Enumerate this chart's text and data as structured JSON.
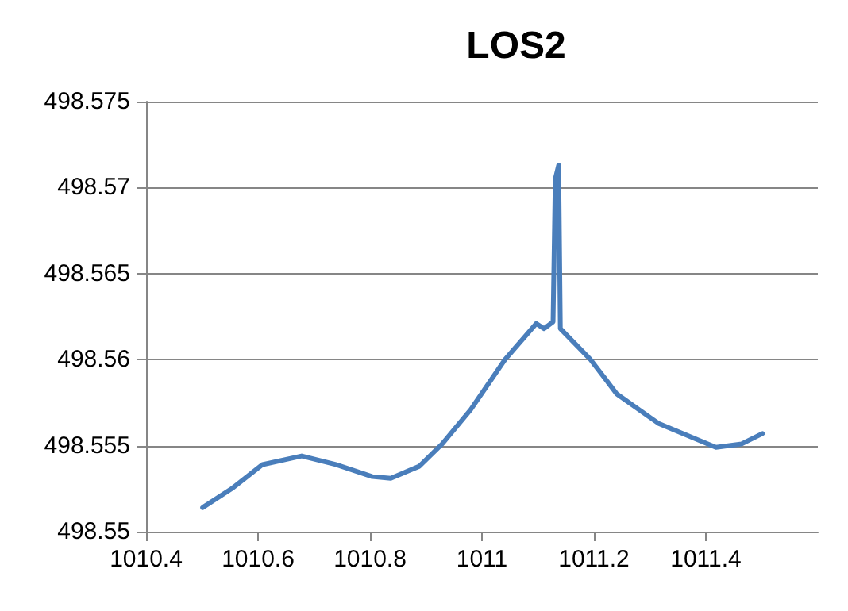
{
  "chart_data": {
    "type": "line",
    "title": "LOS2",
    "x": [
      1010.501,
      1010.553,
      1010.608,
      1010.678,
      1010.739,
      1010.804,
      1010.837,
      1010.888,
      1010.929,
      1010.98,
      1011.041,
      1011.097,
      1011.111,
      1011.127,
      1011.131,
      1011.137,
      1011.14,
      1011.194,
      1011.241,
      1011.315,
      1011.418,
      1011.464,
      1011.501
    ],
    "series": [
      {
        "color": "#4a7ebb",
        "values": [
          498.5514,
          498.5525,
          498.5539,
          498.5544,
          498.5539,
          498.5532,
          498.5531,
          498.5538,
          498.5551,
          498.5571,
          498.56,
          498.5621,
          498.5618,
          498.5622,
          498.5705,
          498.5713,
          498.5618,
          498.56,
          498.558,
          498.5563,
          498.5549,
          498.5551,
          498.5557
        ]
      }
    ],
    "xlim": [
      1010.4,
      1011.6
    ],
    "xticks": [
      1010.4,
      1010.6,
      1010.8,
      1011,
      1011.2,
      1011.4
    ],
    "ylim": [
      498.55,
      498.575
    ],
    "yticks": [
      498.55,
      498.555,
      498.56,
      498.565,
      498.57,
      498.575
    ],
    "grid": "y",
    "marker": "none",
    "line_style": "solid"
  }
}
